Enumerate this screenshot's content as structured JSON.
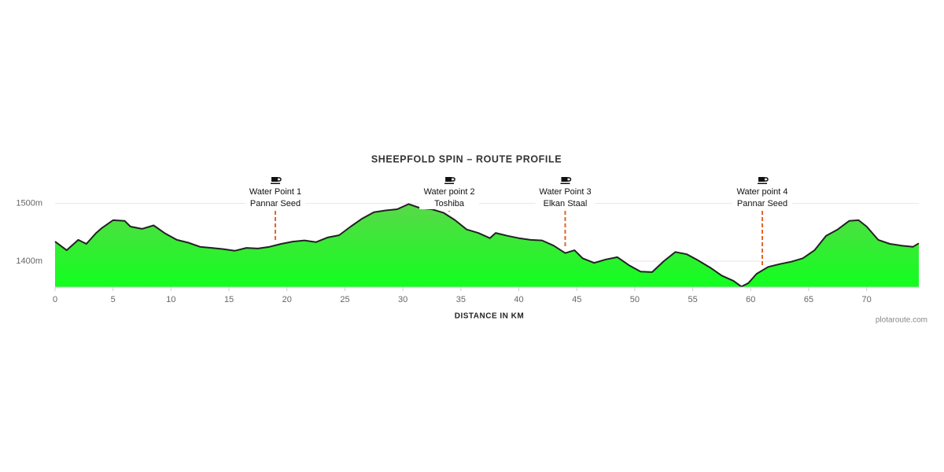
{
  "chart_data": {
    "type": "area",
    "title": "SHEEPFOLD SPIN – ROUTE PROFILE",
    "x_label": "DISTANCE IN KM",
    "credit": "plotaroute.com",
    "x": [
      0,
      1,
      2,
      2.7,
      3.5,
      4,
      5,
      6,
      6.5,
      7.5,
      8.5,
      9.5,
      10.5,
      11.5,
      12.5,
      13.5,
      14.5,
      15.5,
      16.5,
      17.5,
      18.5,
      19.5,
      20.5,
      21.5,
      22.5,
      23.5,
      24.5,
      25.5,
      26.5,
      27.5,
      28.5,
      29.5,
      30.5,
      31.5,
      32.5,
      33.5,
      34.5,
      35.5,
      36.5,
      37.5,
      38,
      39,
      40,
      41,
      42,
      43,
      44,
      44.8,
      45.5,
      46.5,
      47.5,
      48.5,
      49.5,
      50.5,
      51.5,
      52.5,
      53.5,
      54.5,
      55.5,
      56.5,
      57.5,
      58.5,
      59.2,
      59.8,
      60.5,
      61.5,
      62.5,
      63.5,
      64.5,
      65.5,
      66.5,
      67.5,
      68.5,
      69.3,
      70,
      71,
      72,
      73,
      74,
      74.5
    ],
    "values": [
      1434,
      1419,
      1437,
      1430,
      1448,
      1457,
      1471,
      1470,
      1460,
      1456,
      1462,
      1448,
      1437,
      1432,
      1425,
      1423,
      1421,
      1418,
      1423,
      1422,
      1425,
      1430,
      1434,
      1436,
      1433,
      1441,
      1445,
      1460,
      1474,
      1485,
      1488,
      1490,
      1499,
      1492,
      1490,
      1484,
      1471,
      1455,
      1449,
      1440,
      1449,
      1444,
      1440,
      1437,
      1436,
      1427,
      1414,
      1419,
      1405,
      1397,
      1403,
      1407,
      1393,
      1382,
      1381,
      1400,
      1416,
      1412,
      1401,
      1389,
      1375,
      1366,
      1356,
      1362,
      1378,
      1390,
      1395,
      1399,
      1405,
      1419,
      1444,
      1455,
      1470,
      1471,
      1460,
      1437,
      1430,
      1427,
      1425,
      1431
    ],
    "color_top": "#5ad84a",
    "color_bottom": "#11ff1e",
    "line_color": "#222222",
    "xlim": [
      0,
      74.5
    ],
    "xticks": [
      0,
      5,
      10,
      15,
      20,
      25,
      30,
      35,
      40,
      45,
      50,
      55,
      60,
      65,
      70
    ],
    "ylim": [
      1355,
      1550
    ],
    "yticks": [
      {
        "value": 1400,
        "label": "1400m"
      },
      {
        "value": 1500,
        "label": "1500m"
      }
    ],
    "grid": true,
    "annotations": [
      {
        "x": 19,
        "lines": [
          "Water Point 1",
          "Pannar Seed"
        ]
      },
      {
        "x": 34,
        "lines": [
          "Water point 2",
          "Toshiba"
        ]
      },
      {
        "x": 44,
        "lines": [
          "Water Point 3",
          "Elkan Staal"
        ]
      },
      {
        "x": 61,
        "lines": [
          "Water point 4",
          "Pannar Seed"
        ]
      }
    ]
  }
}
